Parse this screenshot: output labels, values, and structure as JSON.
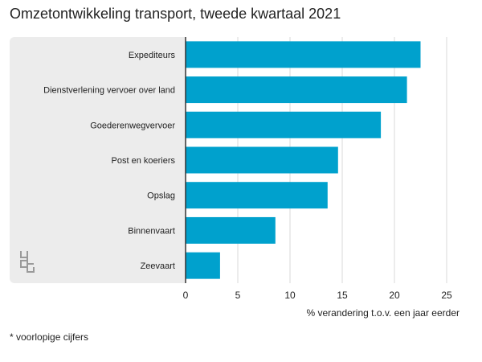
{
  "title": "Omzetontwikkeling transport, tweede kwartaal 2021",
  "footnote": "* voorlopige cijfers",
  "logo_icon": "cbs-logo-icon",
  "colors": {
    "bar": "#00a1cd",
    "panel": "#ececec",
    "grid": "#d9d9d9",
    "axis": "#333333",
    "text": "#222222"
  },
  "chart_data": {
    "type": "bar",
    "orientation": "horizontal",
    "categories": [
      "Expediteurs",
      "Dienstverlening vervoer over land",
      "Goederenwegvervoer",
      "Post en koeriers",
      "Opslag",
      "Binnenvaart",
      "Zeevaart"
    ],
    "values": [
      22.5,
      21.2,
      18.7,
      14.6,
      13.6,
      8.6,
      3.3
    ],
    "xlabel": "% verandering t.o.v. een jaar eerder",
    "xticks": [
      0,
      5,
      10,
      15,
      20,
      25
    ],
    "xlim": [
      0,
      27
    ],
    "grid": true
  }
}
